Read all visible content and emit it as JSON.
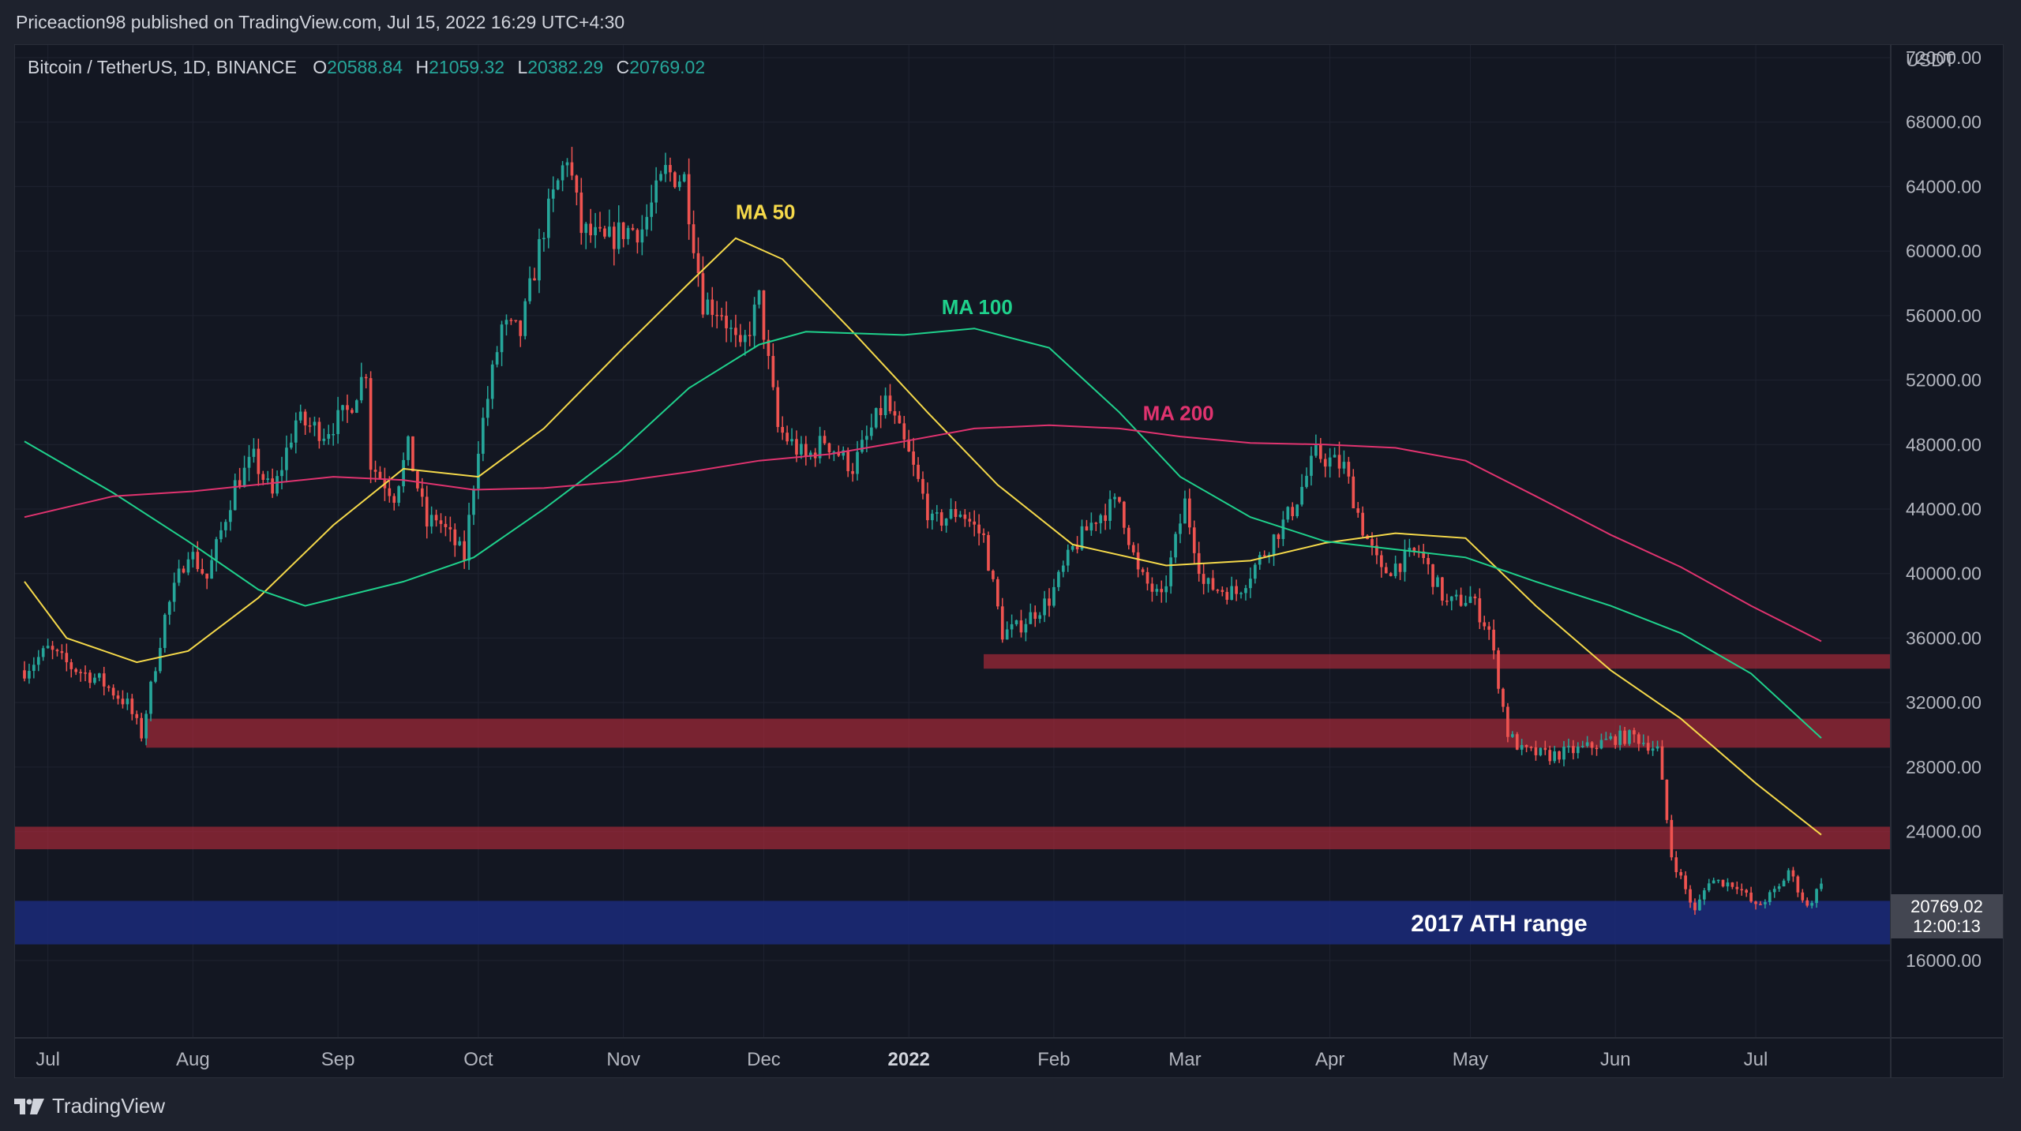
{
  "header": {
    "publisher_line": "Priceaction98 published on TradingView.com, Jul 15, 2022 16:29 UTC+4:30"
  },
  "legend": {
    "symbol": "Bitcoin / TetherUS, 1D, BINANCE",
    "open_label": "O",
    "open_value": "20588.84",
    "high_label": "H",
    "high_value": "21059.32",
    "low_label": "L",
    "low_value": "20382.29",
    "close_label": "C",
    "close_value": "20769.02"
  },
  "price_axis": {
    "currency": "USDT",
    "ticks": [
      "72000.00",
      "68000.00",
      "64000.00",
      "60000.00",
      "56000.00",
      "52000.00",
      "48000.00",
      "44000.00",
      "40000.00",
      "36000.00",
      "32000.00",
      "28000.00",
      "24000.00",
      "16000.00"
    ],
    "last_price": "20769.02",
    "countdown": "12:00:13"
  },
  "time_axis": {
    "labels": [
      {
        "text": "Jul",
        "date": "2021-07-01",
        "bold": false
      },
      {
        "text": "Aug",
        "date": "2021-08-01",
        "bold": false
      },
      {
        "text": "Sep",
        "date": "2021-09-01",
        "bold": false
      },
      {
        "text": "Oct",
        "date": "2021-10-01",
        "bold": false
      },
      {
        "text": "Nov",
        "date": "2021-11-01",
        "bold": false
      },
      {
        "text": "Dec",
        "date": "2021-12-01",
        "bold": false
      },
      {
        "text": "2022",
        "date": "2022-01-01",
        "bold": true
      },
      {
        "text": "Feb",
        "date": "2022-02-01",
        "bold": false
      },
      {
        "text": "Mar",
        "date": "2022-03-01",
        "bold": false
      },
      {
        "text": "Apr",
        "date": "2022-04-01",
        "bold": false
      },
      {
        "text": "May",
        "date": "2022-05-01",
        "bold": false
      },
      {
        "text": "Jun",
        "date": "2022-06-01",
        "bold": false
      },
      {
        "text": "Jul",
        "date": "2022-07-01",
        "bold": false
      }
    ]
  },
  "footer": {
    "brand": "TradingView"
  },
  "colors": {
    "up": "#26a69a",
    "down": "#ef5350",
    "ma50": "#f5d94a",
    "ma100": "#1fd18c",
    "ma200": "#e0336f",
    "zone": "#b02a3a",
    "ath_zone": "#1b2a7a",
    "grid": "#1f2330"
  },
  "chart_data": {
    "type": "line",
    "symbol": "BTCUSDT",
    "timeframe": "1D",
    "x_range": [
      "2021-06-26",
      "2022-07-15"
    ],
    "ylim": [
      14000,
      74000
    ],
    "close_series": [
      [
        "2021-06-26",
        34000
      ],
      [
        "2021-07-01",
        35300
      ],
      [
        "2021-07-06",
        34200
      ],
      [
        "2021-07-12",
        33400
      ],
      [
        "2021-07-18",
        31900
      ],
      [
        "2021-07-21",
        30000
      ],
      [
        "2021-07-26",
        37300
      ],
      [
        "2021-07-31",
        41500
      ],
      [
        "2021-08-04",
        39700
      ],
      [
        "2021-08-10",
        45500
      ],
      [
        "2021-08-14",
        47100
      ],
      [
        "2021-08-18",
        44800
      ],
      [
        "2021-08-23",
        49500
      ],
      [
        "2021-08-29",
        48800
      ],
      [
        "2021-09-03",
        50000
      ],
      [
        "2021-09-07",
        52700
      ],
      [
        "2021-09-08",
        46800
      ],
      [
        "2021-09-13",
        44900
      ],
      [
        "2021-09-16",
        47800
      ],
      [
        "2021-09-20",
        43000
      ],
      [
        "2021-09-22",
        43500
      ],
      [
        "2021-09-28",
        41000
      ],
      [
        "2021-10-01",
        48000
      ],
      [
        "2021-10-06",
        55300
      ],
      [
        "2021-10-10",
        54900
      ],
      [
        "2021-10-15",
        61500
      ],
      [
        "2021-10-20",
        66000
      ],
      [
        "2021-10-23",
        61300
      ],
      [
        "2021-10-28",
        60500
      ],
      [
        "2021-11-01",
        61300
      ],
      [
        "2021-11-05",
        61400
      ],
      [
        "2021-11-10",
        64900
      ],
      [
        "2021-11-14",
        64500
      ],
      [
        "2021-11-18",
        56900
      ],
      [
        "2021-11-22",
        56300
      ],
      [
        "2021-11-26",
        53600
      ],
      [
        "2021-11-30",
        57000
      ],
      [
        "2021-12-04",
        49000
      ],
      [
        "2021-12-10",
        47100
      ],
      [
        "2021-12-14",
        48300
      ],
      [
        "2021-12-20",
        46600
      ],
      [
        "2021-12-27",
        50700
      ],
      [
        "2022-01-01",
        47300
      ],
      [
        "2022-01-06",
        43100
      ],
      [
        "2022-01-12",
        43900
      ],
      [
        "2022-01-17",
        42200
      ],
      [
        "2022-01-21",
        36300
      ],
      [
        "2022-01-24",
        36600
      ],
      [
        "2022-01-31",
        38400
      ],
      [
        "2022-02-05",
        41500
      ],
      [
        "2022-02-10",
        43500
      ],
      [
        "2022-02-15",
        44500
      ],
      [
        "2022-02-19",
        40000
      ],
      [
        "2022-02-24",
        38300
      ],
      [
        "2022-03-01",
        44400
      ],
      [
        "2022-03-05",
        39300
      ],
      [
        "2022-03-12",
        38800
      ],
      [
        "2022-03-17",
        40900
      ],
      [
        "2022-03-24",
        44000
      ],
      [
        "2022-03-29",
        47400
      ],
      [
        "2022-04-04",
        46600
      ],
      [
        "2022-04-08",
        42800
      ],
      [
        "2022-04-12",
        40000
      ],
      [
        "2022-04-20",
        41400
      ],
      [
        "2022-04-26",
        38100
      ],
      [
        "2022-05-01",
        38500
      ],
      [
        "2022-05-05",
        36500
      ],
      [
        "2022-05-09",
        30100
      ],
      [
        "2022-05-12",
        29000
      ],
      [
        "2022-05-18",
        28700
      ],
      [
        "2022-05-26",
        29200
      ],
      [
        "2022-06-01",
        29800
      ],
      [
        "2022-06-05",
        29900
      ],
      [
        "2022-06-10",
        29100
      ],
      [
        "2022-06-13",
        22500
      ],
      [
        "2022-06-16",
        20400
      ],
      [
        "2022-06-18",
        19000
      ],
      [
        "2022-06-21",
        21000
      ],
      [
        "2022-06-27",
        20700
      ],
      [
        "2022-07-01",
        19300
      ],
      [
        "2022-07-06",
        20500
      ],
      [
        "2022-07-08",
        21600
      ],
      [
        "2022-07-12",
        19300
      ],
      [
        "2022-07-15",
        20769
      ]
    ],
    "moving_averages": [
      {
        "name": "MA 50",
        "color": "#f5d94a",
        "points": [
          [
            "2021-06-26",
            39500
          ],
          [
            "2021-07-05",
            36000
          ],
          [
            "2021-07-20",
            34500
          ],
          [
            "2021-07-31",
            35200
          ],
          [
            "2021-08-15",
            38500
          ],
          [
            "2021-08-31",
            43000
          ],
          [
            "2021-09-15",
            46500
          ],
          [
            "2021-10-01",
            46000
          ],
          [
            "2021-10-15",
            49000
          ],
          [
            "2021-11-01",
            54000
          ],
          [
            "2021-11-15",
            58000
          ],
          [
            "2021-11-25",
            60800
          ],
          [
            "2021-12-05",
            59500
          ],
          [
            "2021-12-20",
            55000
          ],
          [
            "2022-01-05",
            50000
          ],
          [
            "2022-01-20",
            45500
          ],
          [
            "2022-02-05",
            41800
          ],
          [
            "2022-02-25",
            40500
          ],
          [
            "2022-03-15",
            40800
          ],
          [
            "2022-03-31",
            41900
          ],
          [
            "2022-04-15",
            42500
          ],
          [
            "2022-04-30",
            42200
          ],
          [
            "2022-05-15",
            38000
          ],
          [
            "2022-05-31",
            34000
          ],
          [
            "2022-06-15",
            31000
          ],
          [
            "2022-07-01",
            27000
          ],
          [
            "2022-07-15",
            23800
          ]
        ]
      },
      {
        "name": "MA 100",
        "color": "#1fd18c",
        "points": [
          [
            "2021-06-26",
            48200
          ],
          [
            "2021-07-15",
            45000
          ],
          [
            "2021-07-31",
            42000
          ],
          [
            "2021-08-15",
            39000
          ],
          [
            "2021-08-25",
            38000
          ],
          [
            "2021-09-15",
            39500
          ],
          [
            "2021-09-30",
            41000
          ],
          [
            "2021-10-15",
            44000
          ],
          [
            "2021-10-31",
            47500
          ],
          [
            "2021-11-15",
            51500
          ],
          [
            "2021-11-30",
            54200
          ],
          [
            "2021-12-10",
            55000
          ],
          [
            "2021-12-31",
            54800
          ],
          [
            "2022-01-15",
            55200
          ],
          [
            "2022-01-31",
            54000
          ],
          [
            "2022-02-15",
            50000
          ],
          [
            "2022-02-28",
            46000
          ],
          [
            "2022-03-15",
            43500
          ],
          [
            "2022-03-31",
            42000
          ],
          [
            "2022-04-15",
            41500
          ],
          [
            "2022-04-30",
            41000
          ],
          [
            "2022-05-15",
            39500
          ],
          [
            "2022-05-31",
            38000
          ],
          [
            "2022-06-15",
            36300
          ],
          [
            "2022-06-30",
            33800
          ],
          [
            "2022-07-15",
            29800
          ]
        ]
      },
      {
        "name": "MA 200",
        "color": "#e0336f",
        "points": [
          [
            "2021-06-26",
            43500
          ],
          [
            "2021-07-15",
            44800
          ],
          [
            "2021-08-01",
            45100
          ],
          [
            "2021-08-31",
            46000
          ],
          [
            "2021-09-15",
            45800
          ],
          [
            "2021-09-30",
            45200
          ],
          [
            "2021-10-15",
            45300
          ],
          [
            "2021-10-31",
            45700
          ],
          [
            "2021-11-15",
            46300
          ],
          [
            "2021-11-30",
            47000
          ],
          [
            "2021-12-15",
            47400
          ],
          [
            "2021-12-31",
            48200
          ],
          [
            "2022-01-15",
            49000
          ],
          [
            "2022-01-31",
            49200
          ],
          [
            "2022-02-15",
            49000
          ],
          [
            "2022-02-28",
            48500
          ],
          [
            "2022-03-15",
            48100
          ],
          [
            "2022-03-31",
            48000
          ],
          [
            "2022-04-15",
            47800
          ],
          [
            "2022-04-30",
            47000
          ],
          [
            "2022-05-15",
            44800
          ],
          [
            "2022-05-31",
            42400
          ],
          [
            "2022-06-15",
            40400
          ],
          [
            "2022-06-30",
            38000
          ],
          [
            "2022-07-15",
            35800
          ]
        ]
      }
    ],
    "zones": [
      {
        "from": "2022-01-17",
        "to": "end",
        "low": 34100,
        "high": 35000,
        "color": "#b02a3a"
      },
      {
        "from": "2021-07-22",
        "to": "end",
        "low": 29200,
        "high": 31000,
        "color": "#b02a3a"
      },
      {
        "from": "start",
        "to": "end",
        "low": 22900,
        "high": 24300,
        "color": "#b02a3a"
      },
      {
        "from": "start",
        "to": "end",
        "low": 17000,
        "high": 19700,
        "color": "#1b2a7a",
        "label": "2017 ATH range"
      }
    ],
    "annotations": [
      {
        "text": "MA 50",
        "date": "2021-11-25",
        "value": 62000,
        "color": "#f5d94a"
      },
      {
        "text": "MA 100",
        "date": "2022-01-08",
        "value": 56100,
        "color": "#1fd18c"
      },
      {
        "text": "MA 200",
        "date": "2022-02-20",
        "value": 49500,
        "color": "#e0336f"
      }
    ]
  }
}
